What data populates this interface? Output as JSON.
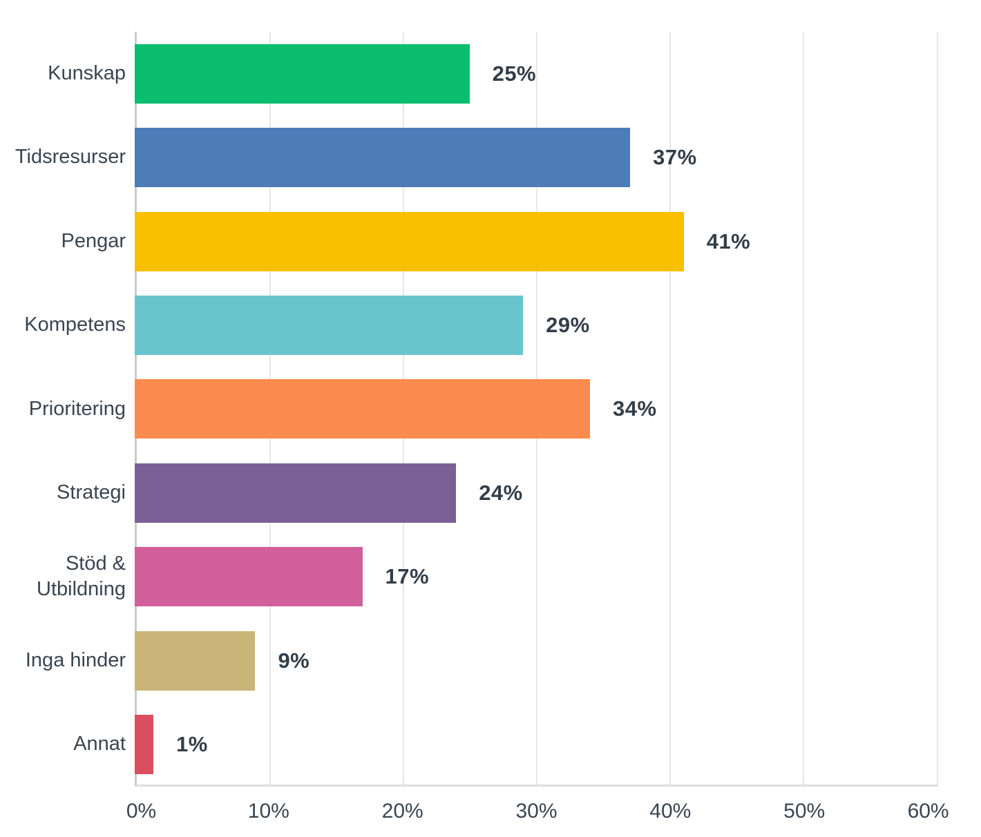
{
  "colors": {
    "background": "#ffffff",
    "text": "#3a4550",
    "value_text": "#333e48",
    "gridline": "#e8e8e8",
    "axis_line": "#c9cbcd"
  },
  "chart_data": {
    "type": "bar",
    "orientation": "horizontal",
    "title": "",
    "xlabel": "",
    "ylabel": "",
    "categories": [
      "Kunskap",
      "Tidsresurser",
      "Pengar",
      "Kompetens",
      "Prioritering",
      "Strategi",
      "Stöd & Utbildning",
      "Inga hinder",
      "Annat"
    ],
    "values": [
      25,
      37,
      41,
      29,
      34,
      24,
      17,
      9,
      1
    ],
    "value_labels": [
      "25%",
      "37%",
      "41%",
      "29%",
      "34%",
      "24%",
      "17%",
      "9%",
      "1%"
    ],
    "bar_colors": [
      "#0abd6f",
      "#4d7cb7",
      "#f9c000",
      "#69c5cd",
      "#fc8b4f",
      "#7b6095",
      "#d15f99",
      "#c8b577",
      "#da4f5f"
    ],
    "xlim": [
      0,
      60
    ],
    "x_ticks": [
      "0%",
      "10%",
      "20%",
      "30%",
      "40%",
      "50%",
      "60%"
    ],
    "grid": "vertical gridlines on",
    "legend": "none"
  }
}
